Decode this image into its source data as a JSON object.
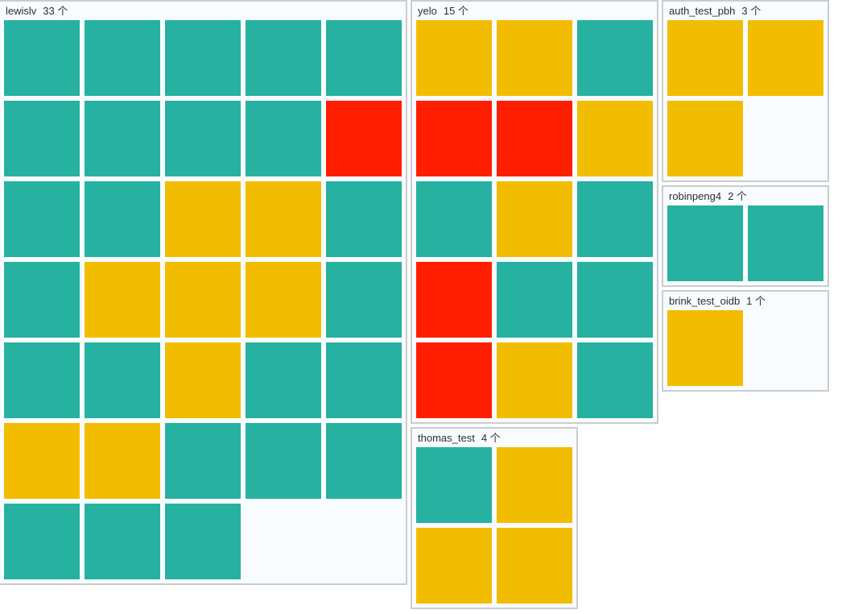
{
  "colors": {
    "ok": "#26b1a1",
    "warn": "#f2bd00",
    "error": "#ff1f00"
  },
  "groups": [
    {
      "id": "lewislv",
      "name": "lewislv",
      "count": "33 个",
      "cols": 5,
      "tiles": [
        "ok",
        "ok",
        "ok",
        "ok",
        "ok",
        "ok",
        "ok",
        "ok",
        "ok",
        "error",
        "ok",
        "ok",
        "warn",
        "warn",
        "ok",
        "ok",
        "warn",
        "warn",
        "warn",
        "ok",
        "ok",
        "ok",
        "warn",
        "ok",
        "ok",
        "warn",
        "warn",
        "ok",
        "ok",
        "ok",
        "ok",
        "ok",
        "ok"
      ]
    },
    {
      "id": "yelo",
      "name": "yelo",
      "count": "15 个",
      "cols": 3,
      "tiles": [
        "warn",
        "warn",
        "ok",
        "error",
        "error",
        "warn",
        "ok",
        "warn",
        "ok",
        "error",
        "ok",
        "ok",
        "error",
        "warn",
        "ok"
      ]
    },
    {
      "id": "thomas_test",
      "name": "thomas_test",
      "count": "4 个",
      "cols": 2,
      "tiles": [
        "ok",
        "warn",
        "warn",
        "warn"
      ]
    },
    {
      "id": "auth_test_pbh",
      "name": "auth_test_pbh",
      "count": "3 个",
      "cols": 2,
      "tiles": [
        "warn",
        "warn",
        "warn"
      ]
    },
    {
      "id": "robinpeng4",
      "name": "robinpeng4",
      "count": "2 个",
      "cols": 2,
      "tiles": [
        "ok",
        "ok"
      ]
    },
    {
      "id": "brink_test_oidb",
      "name": "brink_test_oidb",
      "count": "1 个",
      "cols": 2,
      "tiles": [
        "warn"
      ]
    }
  ]
}
